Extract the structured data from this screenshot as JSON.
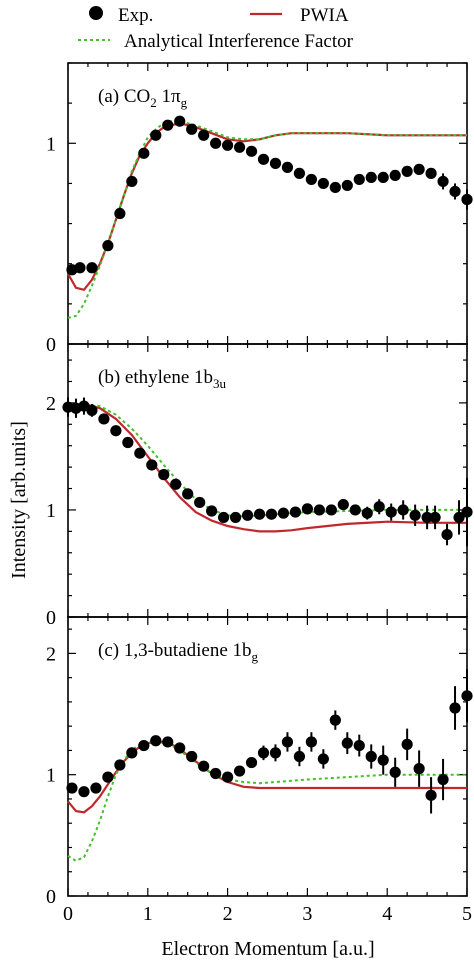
{
  "legend": {
    "entries": [
      {
        "label": "Exp.",
        "marker": "filled-circle"
      },
      {
        "label": "PWIA",
        "style": "solid"
      },
      {
        "label": "Analytical Interference Factor",
        "style": "dotted"
      }
    ]
  },
  "colors": {
    "exp": "#000000",
    "pwia": "#c0282d",
    "aif": "#44c02a"
  },
  "ylabel": "Intensity [arb.units]",
  "xlabel": "Electron Momentum [a.u.]",
  "chart_data": [
    {
      "type": "scatter",
      "panel_label": "(a) CO",
      "panel_sub1": "2",
      "panel_mid": " 1π",
      "panel_sub2": "g",
      "xlim": [
        0,
        5
      ],
      "ylim": [
        0,
        1.4
      ],
      "yticks": [
        0,
        1
      ],
      "xticks": [
        0,
        1,
        2,
        3,
        4,
        5
      ],
      "series": [
        {
          "name": "Exp.",
          "kind": "points",
          "x": [
            0.05,
            0.15,
            0.3,
            0.5,
            0.65,
            0.8,
            0.95,
            1.1,
            1.25,
            1.4,
            1.55,
            1.7,
            1.85,
            2.0,
            2.15,
            2.3,
            2.45,
            2.6,
            2.75,
            2.9,
            3.05,
            3.2,
            3.35,
            3.5,
            3.65,
            3.8,
            3.95,
            4.1,
            4.25,
            4.4,
            4.55,
            4.7,
            4.85,
            5.0
          ],
          "y": [
            0.37,
            0.38,
            0.38,
            0.49,
            0.65,
            0.81,
            0.95,
            1.04,
            1.09,
            1.11,
            1.07,
            1.04,
            1.0,
            0.99,
            0.98,
            0.96,
            0.92,
            0.9,
            0.88,
            0.85,
            0.82,
            0.8,
            0.78,
            0.79,
            0.82,
            0.83,
            0.83,
            0.84,
            0.86,
            0.87,
            0.85,
            0.81,
            0.76,
            0.72
          ],
          "yerr": [
            0,
            0,
            0,
            0,
            0,
            0,
            0,
            0,
            0,
            0,
            0,
            0,
            0,
            0,
            0,
            0,
            0,
            0,
            0,
            0,
            0,
            0,
            0,
            0,
            0,
            0,
            0,
            0,
            0,
            0,
            0,
            0.04,
            0.04,
            0.05
          ]
        },
        {
          "name": "PWIA",
          "kind": "line",
          "x": [
            0,
            0.1,
            0.2,
            0.3,
            0.4,
            0.5,
            0.6,
            0.7,
            0.8,
            0.9,
            1.0,
            1.1,
            1.2,
            1.3,
            1.4,
            1.5,
            1.6,
            1.8,
            2.0,
            2.2,
            2.4,
            2.6,
            2.8,
            3.0,
            3.5,
            4.0,
            4.5,
            5.0
          ],
          "y": [
            0.35,
            0.28,
            0.27,
            0.32,
            0.4,
            0.5,
            0.62,
            0.74,
            0.85,
            0.94,
            1.0,
            1.05,
            1.08,
            1.09,
            1.1,
            1.09,
            1.08,
            1.05,
            1.02,
            1.01,
            1.02,
            1.04,
            1.05,
            1.05,
            1.05,
            1.04,
            1.04,
            1.04
          ]
        },
        {
          "name": "Analytical Interference Factor",
          "kind": "line",
          "x": [
            0,
            0.1,
            0.2,
            0.3,
            0.4,
            0.5,
            0.6,
            0.7,
            0.8,
            0.9,
            1.0,
            1.1,
            1.2,
            1.3,
            1.4,
            1.5,
            1.6,
            1.8,
            2.0,
            2.2,
            2.4,
            2.6,
            2.8,
            3.0,
            3.5,
            4.0,
            4.5,
            5.0
          ],
          "y": [
            0.13,
            0.14,
            0.2,
            0.29,
            0.39,
            0.5,
            0.62,
            0.74,
            0.86,
            0.95,
            1.03,
            1.07,
            1.1,
            1.11,
            1.11,
            1.1,
            1.09,
            1.06,
            1.03,
            1.02,
            1.02,
            1.04,
            1.05,
            1.05,
            1.05,
            1.04,
            1.04,
            1.04
          ]
        }
      ]
    },
    {
      "type": "scatter",
      "panel_label": "(b) ethylene 1b",
      "panel_sub1": "3u",
      "panel_mid": "",
      "panel_sub2": "",
      "xlim": [
        0,
        5
      ],
      "ylim": [
        0,
        2.55
      ],
      "yticks": [
        0,
        1,
        2
      ],
      "xticks": [
        0,
        1,
        2,
        3,
        4,
        5
      ],
      "series": [
        {
          "name": "Exp.",
          "kind": "points",
          "x": [
            0.0,
            0.1,
            0.2,
            0.3,
            0.45,
            0.6,
            0.75,
            0.9,
            1.05,
            1.2,
            1.35,
            1.5,
            1.65,
            1.8,
            1.95,
            2.1,
            2.25,
            2.4,
            2.55,
            2.7,
            2.85,
            3.0,
            3.15,
            3.3,
            3.45,
            3.6,
            3.75,
            3.9,
            4.05,
            4.2,
            4.35,
            4.5,
            4.6,
            4.75,
            4.9,
            5.0
          ],
          "y": [
            1.96,
            1.95,
            1.97,
            1.93,
            1.85,
            1.74,
            1.63,
            1.53,
            1.42,
            1.33,
            1.24,
            1.15,
            1.07,
            0.99,
            0.93,
            0.93,
            0.95,
            0.96,
            0.96,
            0.97,
            0.98,
            1.01,
            1.0,
            1.0,
            1.05,
            1.0,
            0.97,
            1.03,
            0.98,
            1.0,
            0.95,
            0.93,
            0.93,
            0.77,
            0.93,
            0.98
          ],
          "yerr": [
            0.09,
            0.09,
            0.08,
            0.06,
            0,
            0,
            0,
            0,
            0,
            0,
            0,
            0,
            0,
            0,
            0,
            0,
            0,
            0,
            0,
            0,
            0,
            0,
            0,
            0,
            0.05,
            0.05,
            0.06,
            0.07,
            0.08,
            0.09,
            0.1,
            0.11,
            0.11,
            0.1,
            0.16,
            0.32
          ]
        },
        {
          "name": "PWIA",
          "kind": "line",
          "x": [
            0,
            0.2,
            0.4,
            0.6,
            0.8,
            1.0,
            1.2,
            1.4,
            1.6,
            1.8,
            2.0,
            2.2,
            2.4,
            2.6,
            2.8,
            3.0,
            3.5,
            4.0,
            4.5,
            5.0
          ],
          "y": [
            1.97,
            1.99,
            1.95,
            1.85,
            1.7,
            1.5,
            1.3,
            1.12,
            0.98,
            0.9,
            0.85,
            0.82,
            0.8,
            0.8,
            0.81,
            0.83,
            0.87,
            0.89,
            0.88,
            0.88
          ]
        },
        {
          "name": "Analytical Interference Factor",
          "kind": "line",
          "x": [
            0,
            0.2,
            0.4,
            0.6,
            0.8,
            1.0,
            1.2,
            1.4,
            1.6,
            1.8,
            2.0,
            2.2,
            2.4,
            2.6,
            2.8,
            3.0,
            3.5,
            4.0,
            4.5,
            5.0
          ],
          "y": [
            1.95,
            1.99,
            1.97,
            1.89,
            1.76,
            1.6,
            1.42,
            1.25,
            1.1,
            1.0,
            0.95,
            0.94,
            0.95,
            0.96,
            0.97,
            0.98,
            0.99,
            1.0,
            1.0,
            1.0
          ]
        }
      ]
    },
    {
      "type": "scatter",
      "panel_label": "(c) 1,3-butadiene 1b",
      "panel_sub1": "g",
      "panel_mid": "",
      "panel_sub2": "",
      "xlim": [
        0,
        5
      ],
      "ylim": [
        0,
        2.3
      ],
      "yticks": [
        0,
        1,
        2
      ],
      "xticks": [
        0,
        1,
        2,
        3,
        4,
        5
      ],
      "series": [
        {
          "name": "Exp.",
          "kind": "points",
          "x": [
            0.05,
            0.2,
            0.35,
            0.5,
            0.65,
            0.8,
            0.95,
            1.1,
            1.25,
            1.4,
            1.55,
            1.7,
            1.85,
            2.0,
            2.15,
            2.3,
            2.45,
            2.6,
            2.75,
            2.9,
            3.05,
            3.2,
            3.35,
            3.5,
            3.65,
            3.8,
            3.95,
            4.1,
            4.25,
            4.4,
            4.55,
            4.7,
            4.85,
            5.0
          ],
          "y": [
            0.89,
            0.86,
            0.89,
            0.98,
            1.08,
            1.18,
            1.24,
            1.28,
            1.27,
            1.22,
            1.15,
            1.07,
            1.01,
            0.98,
            1.03,
            1.1,
            1.18,
            1.18,
            1.27,
            1.15,
            1.27,
            1.13,
            1.45,
            1.26,
            1.24,
            1.15,
            1.12,
            1.02,
            1.25,
            1.05,
            0.83,
            0.96,
            1.55,
            1.65
          ],
          "yerr": [
            0,
            0,
            0,
            0,
            0,
            0,
            0,
            0,
            0,
            0,
            0,
            0,
            0,
            0,
            0,
            0,
            0.06,
            0.07,
            0.08,
            0.08,
            0.08,
            0.08,
            0.08,
            0.09,
            0.09,
            0.1,
            0.12,
            0.12,
            0.13,
            0.15,
            0.15,
            0.17,
            0.18,
            0.22
          ]
        },
        {
          "name": "PWIA",
          "kind": "line",
          "x": [
            0,
            0.1,
            0.2,
            0.3,
            0.4,
            0.5,
            0.6,
            0.7,
            0.8,
            0.9,
            1.0,
            1.1,
            1.2,
            1.3,
            1.4,
            1.5,
            1.6,
            1.8,
            2.0,
            2.2,
            2.4,
            2.6,
            2.8,
            3.0,
            3.5,
            4.0,
            4.5,
            5.0
          ],
          "y": [
            0.78,
            0.7,
            0.69,
            0.74,
            0.82,
            0.92,
            1.02,
            1.11,
            1.18,
            1.23,
            1.26,
            1.27,
            1.27,
            1.25,
            1.21,
            1.16,
            1.11,
            1.01,
            0.94,
            0.9,
            0.89,
            0.89,
            0.89,
            0.89,
            0.89,
            0.89,
            0.89,
            0.89
          ]
        },
        {
          "name": "Analytical Interference Factor",
          "kind": "line",
          "x": [
            0,
            0.1,
            0.2,
            0.3,
            0.4,
            0.5,
            0.6,
            0.7,
            0.8,
            0.9,
            1.0,
            1.1,
            1.2,
            1.3,
            1.4,
            1.5,
            1.6,
            1.8,
            2.0,
            2.2,
            2.4,
            2.6,
            2.8,
            3.0,
            3.5,
            4.0,
            4.5,
            5.0
          ],
          "y": [
            0.33,
            0.29,
            0.32,
            0.45,
            0.62,
            0.82,
            1.0,
            1.12,
            1.2,
            1.25,
            1.27,
            1.27,
            1.26,
            1.24,
            1.2,
            1.15,
            1.1,
            1.01,
            0.96,
            0.94,
            0.93,
            0.94,
            0.95,
            0.96,
            0.98,
            1.0,
            1.0,
            1.0
          ]
        }
      ]
    }
  ]
}
